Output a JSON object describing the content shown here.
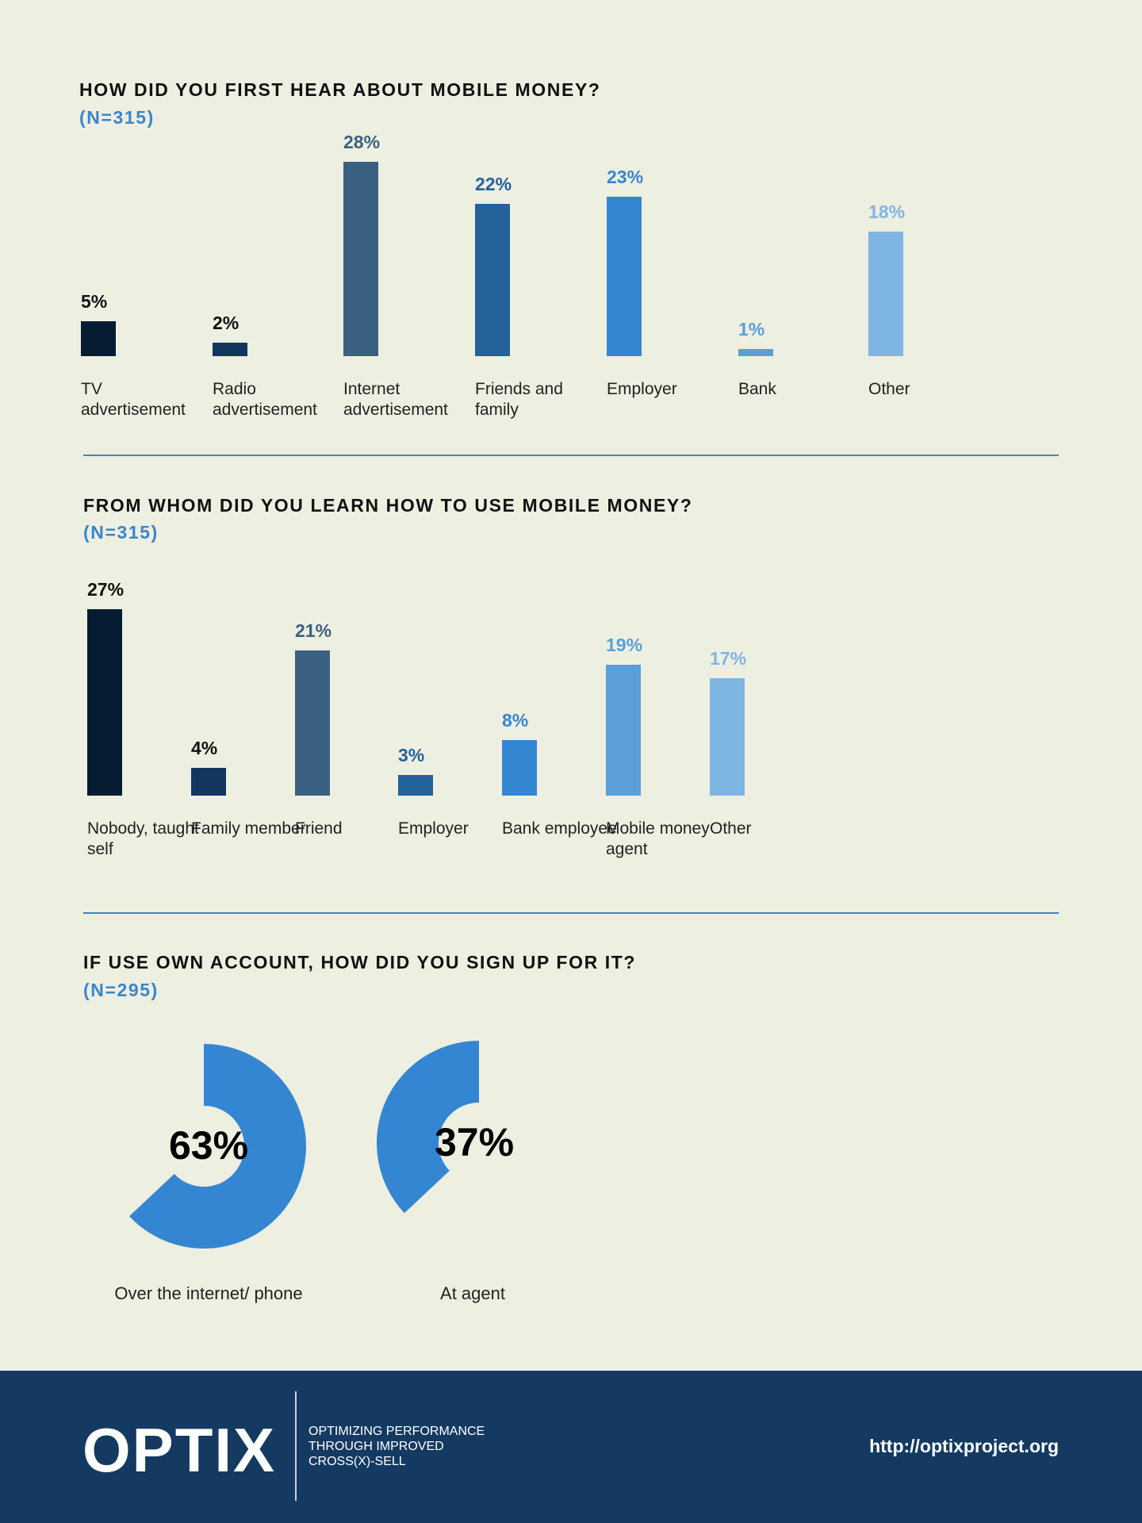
{
  "chart_data": [
    {
      "type": "bar",
      "title": "HOW DID YOU FIRST HEAR ABOUT MOBILE MONEY?",
      "subtitle": "(N=315)",
      "categories": [
        "TV advertisement",
        "Radio advertisement",
        "Internet advertisement",
        "Friends and family",
        "Employer",
        "Bank",
        "Other"
      ],
      "values": [
        5,
        2,
        28,
        22,
        23,
        1,
        18
      ],
      "value_labels": [
        "5%",
        "2%",
        "28%",
        "22%",
        "23%",
        "1%",
        "18%"
      ],
      "colors": [
        "#051c33",
        "#12365e",
        "#3b6182",
        "#23629a",
        "#3586d2",
        "#5a9fd8",
        "#7fb5e2"
      ]
    },
    {
      "type": "bar",
      "title": "FROM WHOM DID YOU LEARN HOW TO USE MOBILE MONEY?",
      "subtitle": "(N=315)",
      "categories": [
        "Nobody, taught self",
        "Family member",
        "Friend",
        "Employer",
        "Bank employee",
        "Mobile money agent",
        "Other"
      ],
      "values": [
        27,
        4,
        21,
        3,
        8,
        19,
        17
      ],
      "value_labels": [
        "27%",
        "4%",
        "21%",
        "3%",
        "8%",
        "19%",
        "17%"
      ],
      "colors": [
        "#051c33",
        "#12365e",
        "#3b6182",
        "#23629a",
        "#3586d2",
        "#5a9fd8",
        "#7fb5e2"
      ]
    },
    {
      "type": "donut",
      "title": "IF USE OWN ACCOUNT, HOW DID YOU SIGN UP FOR IT?",
      "subtitle": "(N=295)",
      "categories": [
        "Over the internet/ phone",
        "At agent"
      ],
      "values": [
        63,
        37
      ],
      "value_labels": [
        "63%",
        "37%"
      ],
      "color": "#3586d2"
    }
  ],
  "footer": {
    "logo": "OPTIX",
    "tagline": [
      "OPTIMIZING PERFORMANCE",
      "THROUGH IMPROVED",
      "CROSS(X)-SELL"
    ],
    "url": "http://optixproject.org"
  }
}
